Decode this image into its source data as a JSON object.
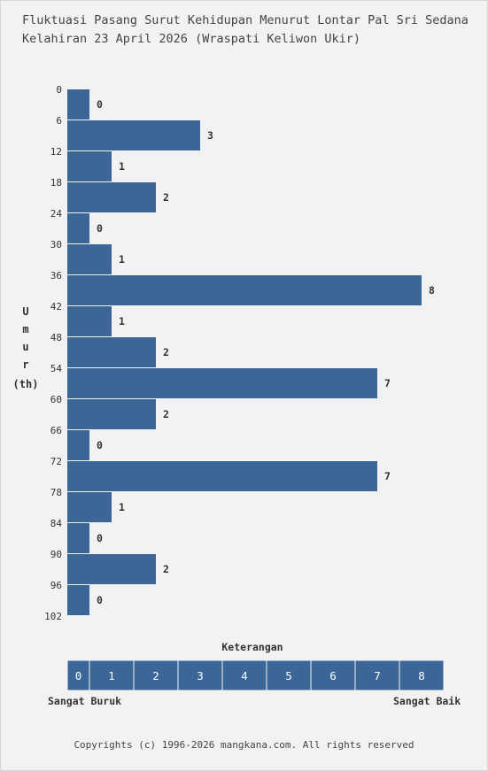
{
  "title_line1": "Fluktuasi Pasang Surut Kehidupan Menurut Lontar Pal Sri Sedana",
  "title_line2": "Kelahiran 23 April 2026 (Wraspati Keliwon Ukir)",
  "y_axis_title": [
    "U",
    "m",
    "u",
    "r",
    "(th)"
  ],
  "legend": {
    "title": "Keterangan",
    "scale": [
      "0",
      "1",
      "2",
      "3",
      "4",
      "5",
      "6",
      "7",
      "8"
    ],
    "low_label": "Sangat Buruk",
    "high_label": "Sangat Baik"
  },
  "footer": "Copyrights (c) 1996-2026 mangkana.com. All rights reserved",
  "colors": {
    "bar": "#3d6698",
    "background": "#f2f2f2",
    "legend_text": "#ffffff"
  },
  "chart_data": {
    "type": "bar",
    "orientation": "horizontal",
    "title": "Fluktuasi Pasang Surut Kehidupan Menurut Lontar Pal Sri Sedana Kelahiran 23 April 2026 (Wraspati Keliwon Ukir)",
    "ylabel": "Umur (th)",
    "y_ticks": [
      0,
      6,
      12,
      18,
      24,
      30,
      36,
      42,
      48,
      54,
      60,
      66,
      72,
      78,
      84,
      90,
      96,
      102
    ],
    "categories": [
      "0",
      "6",
      "12",
      "18",
      "24",
      "30",
      "36",
      "42",
      "48",
      "54",
      "60",
      "66",
      "72",
      "78",
      "84",
      "90",
      "96"
    ],
    "values": [
      0,
      3,
      1,
      2,
      0,
      1,
      8,
      1,
      2,
      7,
      2,
      0,
      7,
      1,
      0,
      2,
      0
    ],
    "xlim": [
      0,
      8
    ],
    "grid": false,
    "data_labels": true
  }
}
